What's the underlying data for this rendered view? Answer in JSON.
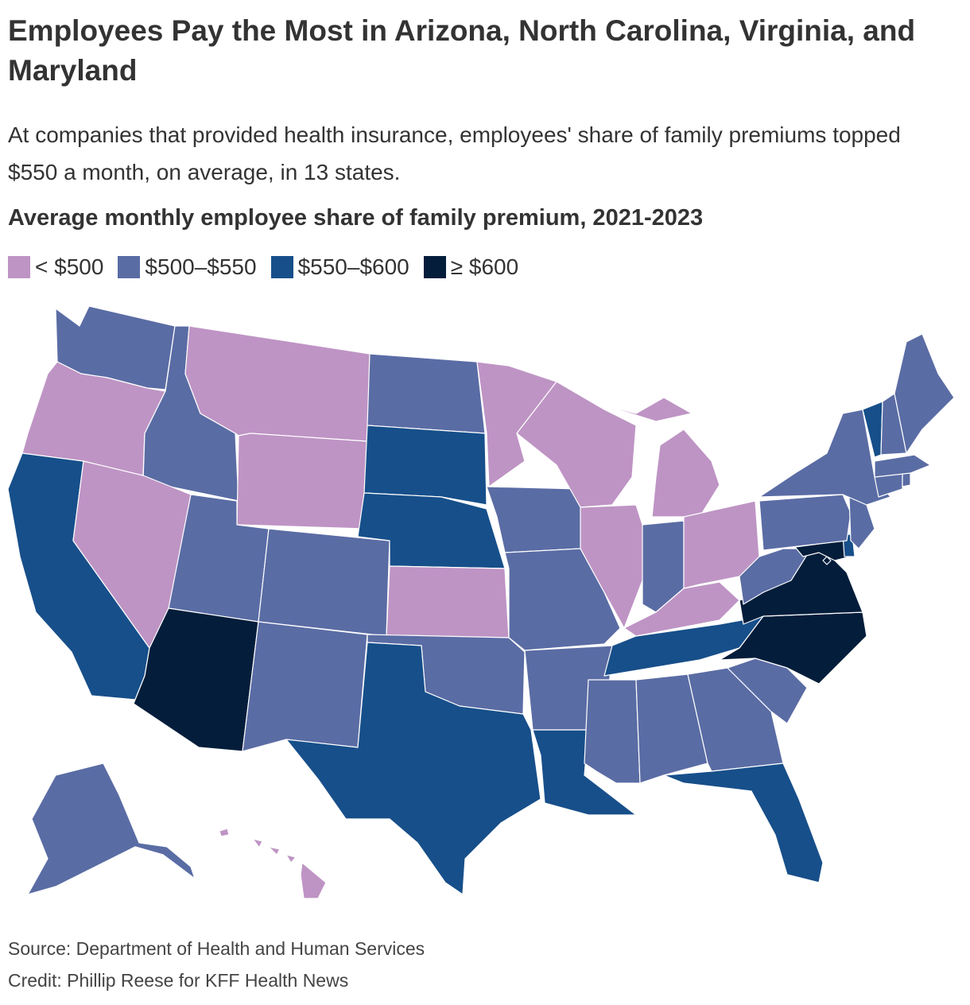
{
  "header": {
    "title": "Employees Pay the Most in Arizona, North Carolina, Virginia, and Maryland",
    "subtitle": "At companies that provided health insurance, employees' share of family premiums topped $550 a month, on average, in 13 states.",
    "map_heading": "Average monthly employee share of family premium, 2021-2023"
  },
  "legend": [
    {
      "label": "< $500",
      "color": "#be94c4"
    },
    {
      "label": "$500–$550",
      "color": "#5a6ca4"
    },
    {
      "label": "$550–$600",
      "color": "#174f8a"
    },
    {
      "label": "≥ $600",
      "color": "#031d3b"
    }
  ],
  "states": [
    {
      "name": "Washington",
      "bin": 1
    },
    {
      "name": "Oregon",
      "bin": 0
    },
    {
      "name": "California",
      "bin": 2
    },
    {
      "name": "Idaho",
      "bin": 1
    },
    {
      "name": "Nevada",
      "bin": 0
    },
    {
      "name": "Montana",
      "bin": 0
    },
    {
      "name": "Wyoming",
      "bin": 0
    },
    {
      "name": "Utah",
      "bin": 1
    },
    {
      "name": "Arizona",
      "bin": 3
    },
    {
      "name": "Colorado",
      "bin": 1
    },
    {
      "name": "New Mexico",
      "bin": 1
    },
    {
      "name": "North Dakota",
      "bin": 1
    },
    {
      "name": "South Dakota",
      "bin": 2
    },
    {
      "name": "Nebraska",
      "bin": 2
    },
    {
      "name": "Kansas",
      "bin": 0
    },
    {
      "name": "Oklahoma",
      "bin": 1
    },
    {
      "name": "Texas",
      "bin": 2
    },
    {
      "name": "Minnesota",
      "bin": 0
    },
    {
      "name": "Iowa",
      "bin": 1
    },
    {
      "name": "Missouri",
      "bin": 1
    },
    {
      "name": "Arkansas",
      "bin": 1
    },
    {
      "name": "Louisiana",
      "bin": 2
    },
    {
      "name": "Wisconsin",
      "bin": 0
    },
    {
      "name": "Illinois",
      "bin": 0
    },
    {
      "name": "Michigan",
      "bin": 0
    },
    {
      "name": "Indiana",
      "bin": 1
    },
    {
      "name": "Ohio",
      "bin": 0
    },
    {
      "name": "Kentucky",
      "bin": 0
    },
    {
      "name": "Tennessee",
      "bin": 2
    },
    {
      "name": "Mississippi",
      "bin": 1
    },
    {
      "name": "Alabama",
      "bin": 1
    },
    {
      "name": "Georgia",
      "bin": 1
    },
    {
      "name": "Florida",
      "bin": 2
    },
    {
      "name": "South Carolina",
      "bin": 1
    },
    {
      "name": "North Carolina",
      "bin": 3
    },
    {
      "name": "Virginia",
      "bin": 3
    },
    {
      "name": "West Virginia",
      "bin": 1
    },
    {
      "name": "Maryland",
      "bin": 3
    },
    {
      "name": "Delaware",
      "bin": 2
    },
    {
      "name": "District of Columbia",
      "bin": 3
    },
    {
      "name": "Pennsylvania",
      "bin": 1
    },
    {
      "name": "New Jersey",
      "bin": 1
    },
    {
      "name": "New York",
      "bin": 1
    },
    {
      "name": "Connecticut",
      "bin": 1
    },
    {
      "name": "Rhode Island",
      "bin": 1
    },
    {
      "name": "Massachusetts",
      "bin": 1
    },
    {
      "name": "Vermont",
      "bin": 2
    },
    {
      "name": "New Hampshire",
      "bin": 1
    },
    {
      "name": "Maine",
      "bin": 1
    },
    {
      "name": "Alaska",
      "bin": 1
    },
    {
      "name": "Hawaii",
      "bin": 0
    }
  ],
  "footer": {
    "source": "Source: Department of Health and Human Services",
    "credit": "Credit: Phillip Reese for KFF Health News"
  }
}
